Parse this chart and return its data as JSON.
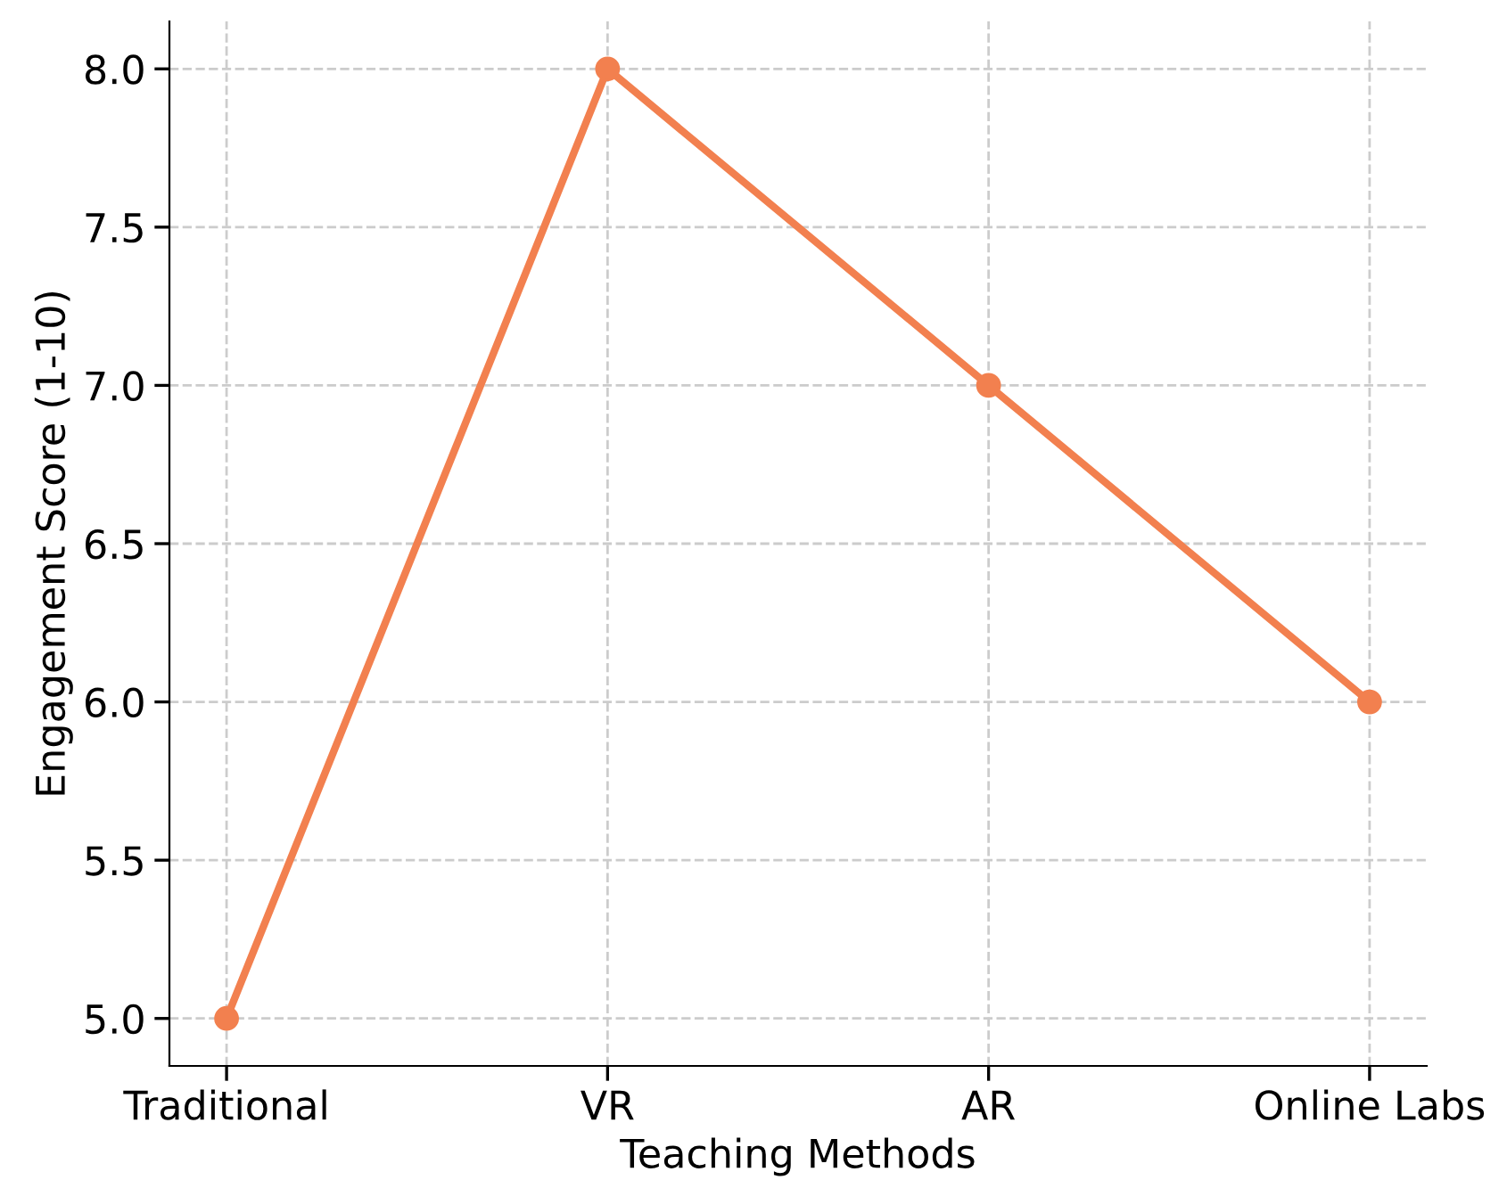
{
  "chart_data": {
    "type": "line",
    "xlabel": "Teaching Methods",
    "ylabel": "Engagement Score (1-10)",
    "categories": [
      "Traditional",
      "VR",
      "AR",
      "Online Labs"
    ],
    "series": [
      {
        "color": "#f2804f",
        "values": [
          5.0,
          8.0,
          7.0,
          6.0
        ]
      }
    ],
    "ylim": [
      4.85,
      8.15
    ],
    "yticks": [
      {
        "value": 5.0,
        "label": "5.0"
      },
      {
        "value": 5.5,
        "label": "5.5"
      },
      {
        "value": 6.0,
        "label": "6.0"
      },
      {
        "value": 6.5,
        "label": "6.5"
      },
      {
        "value": 7.0,
        "label": "7.0"
      },
      {
        "value": 7.5,
        "label": "7.5"
      },
      {
        "value": 8.0,
        "label": "8.0"
      }
    ],
    "grid": true,
    "marker": "circle",
    "line_style": "solid"
  }
}
